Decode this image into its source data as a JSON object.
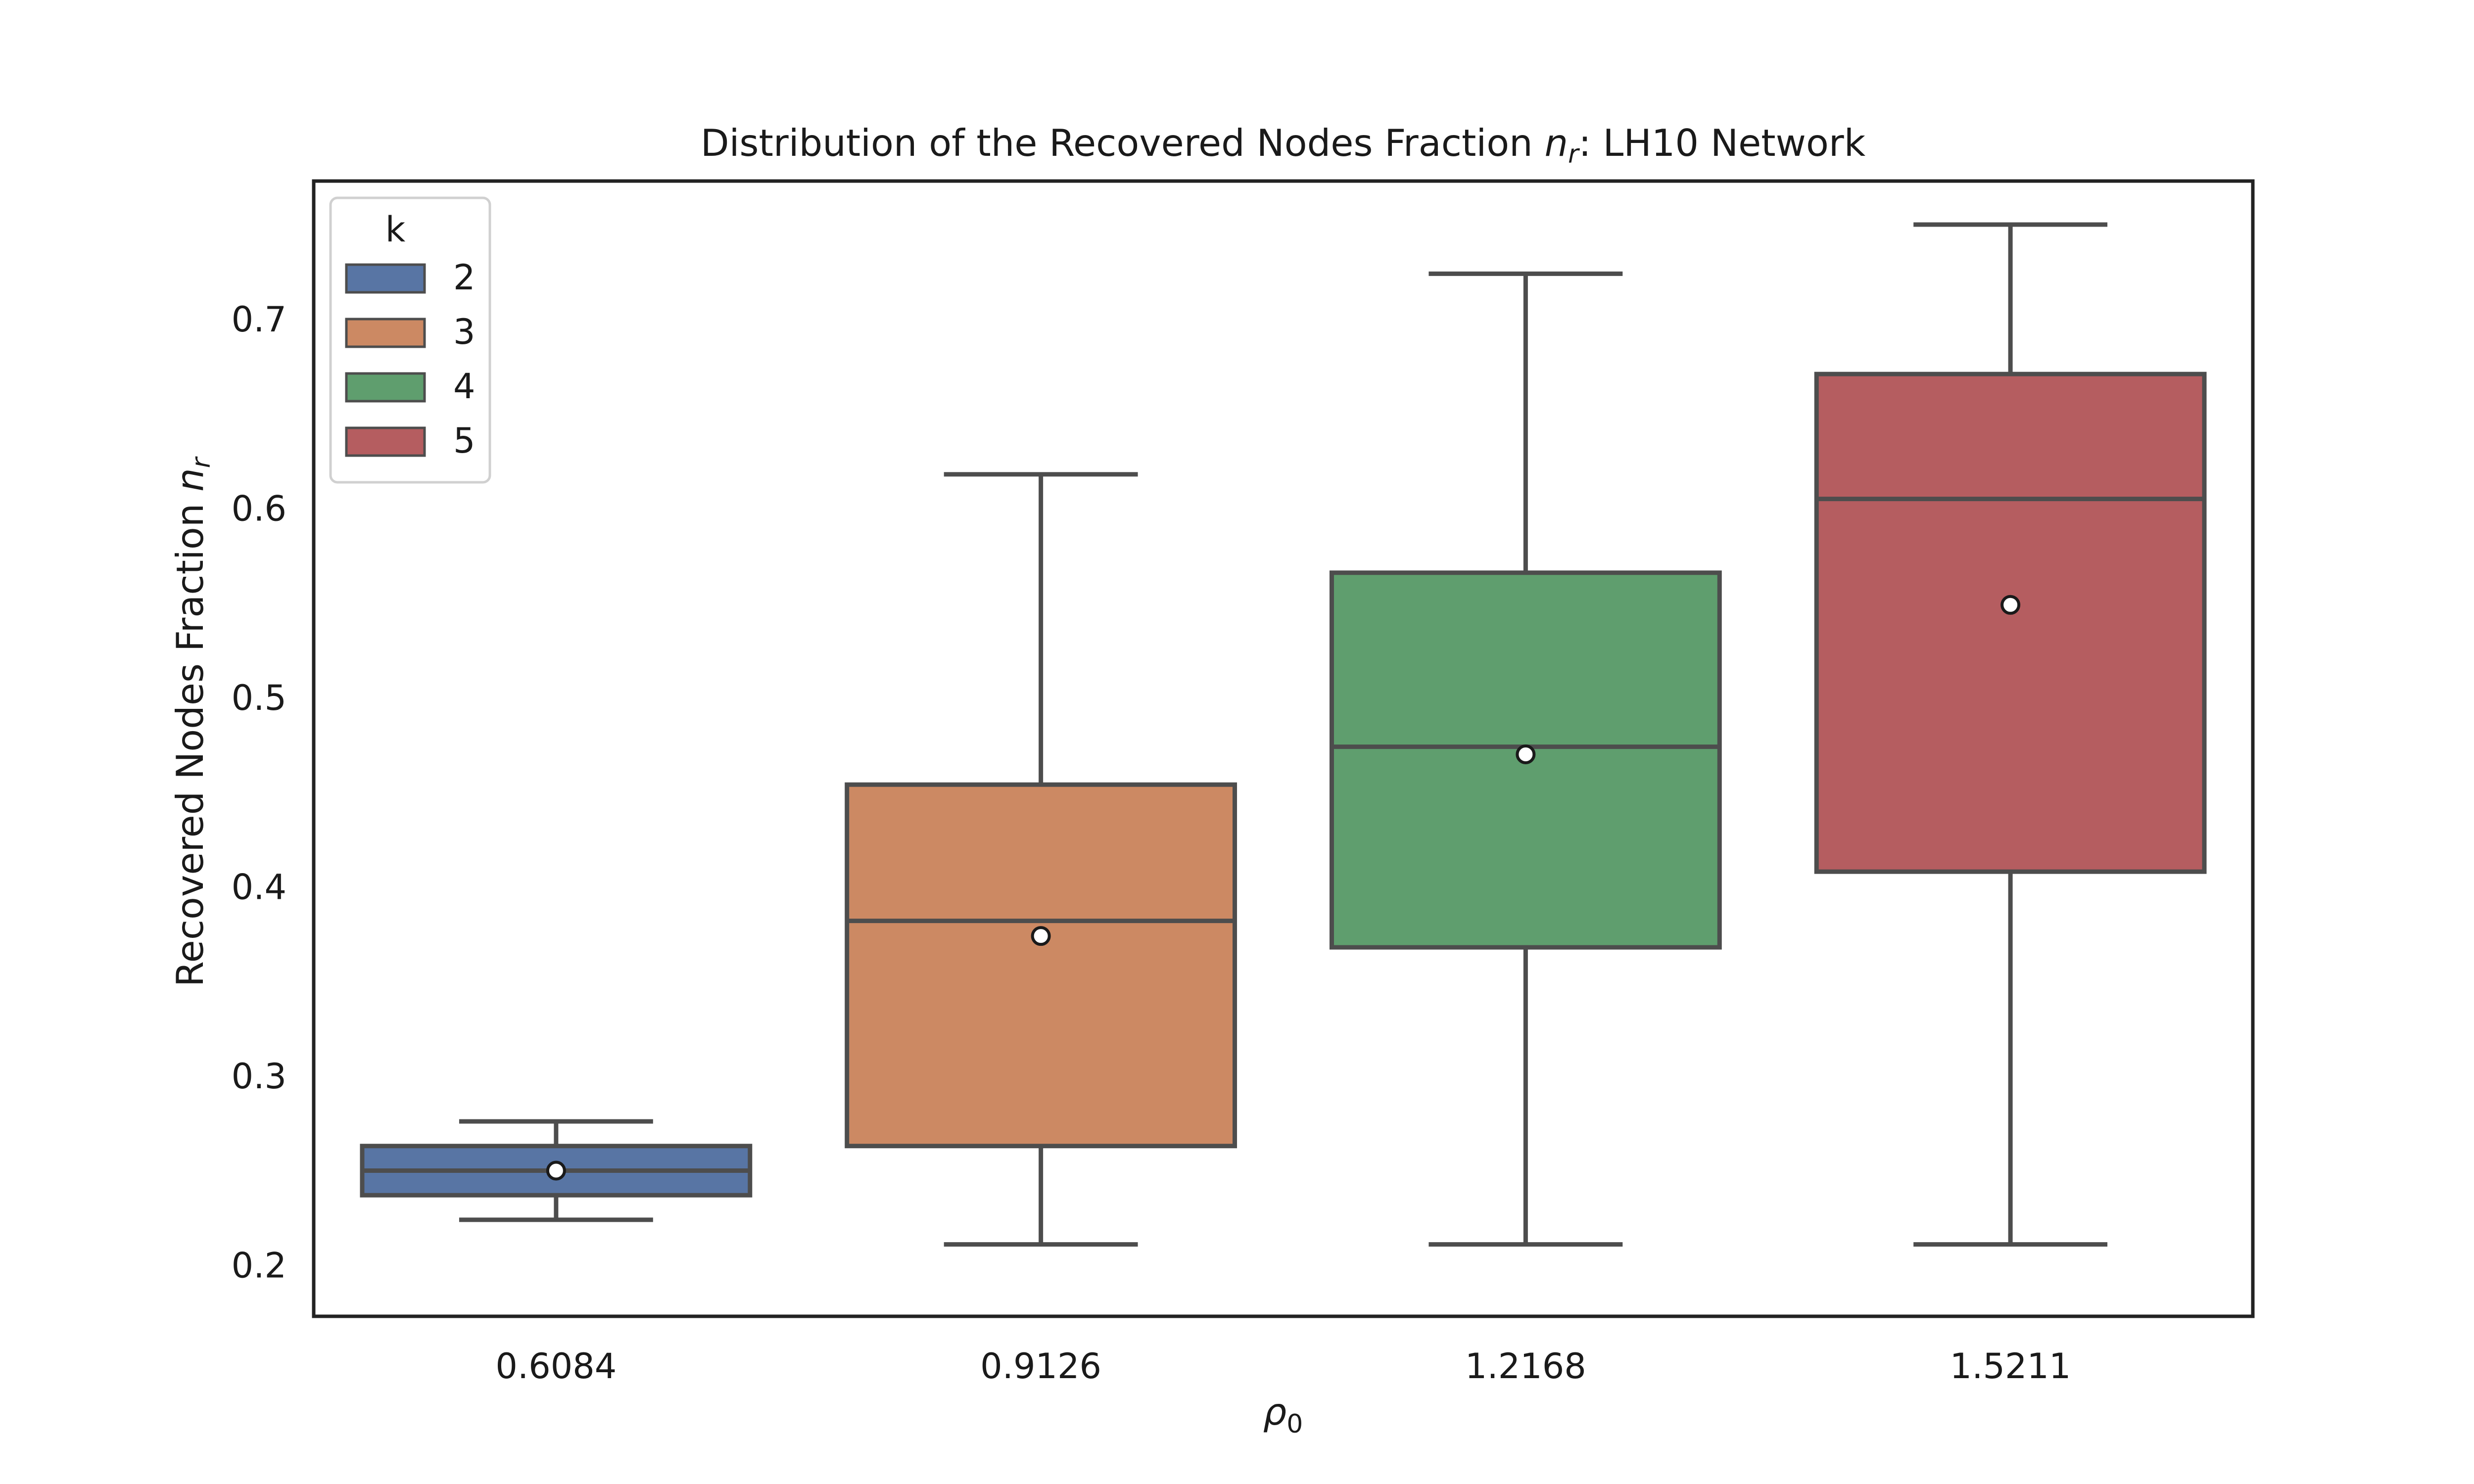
{
  "chart_data": {
    "type": "box",
    "title": {
      "prefix": "Distribution of the Recovered Nodes Fraction ",
      "var_main": "n",
      "var_sub": "r",
      "suffix": ": LH10 Network"
    },
    "xlabel": {
      "main": "ρ",
      "sub": "0"
    },
    "ylabel": {
      "prefix": "Recovered Nodes Fraction ",
      "var_main": "n",
      "var_sub": "r"
    },
    "categories": [
      "0.6084",
      "0.9126",
      "1.2168",
      "1.5211"
    ],
    "ylim": [
      0.173,
      0.773
    ],
    "yticks": [
      0.2,
      0.3,
      0.4,
      0.5,
      0.6,
      0.7
    ],
    "ytick_labels": [
      "0.2",
      "0.3",
      "0.4",
      "0.5",
      "0.6",
      "0.7"
    ],
    "legend": {
      "title": "k",
      "placement": "top-left",
      "entries": [
        {
          "label": "2",
          "color": "#5875a4"
        },
        {
          "label": "3",
          "color": "#cc8963"
        },
        {
          "label": "4",
          "color": "#5f9e6e"
        },
        {
          "label": "5",
          "color": "#b55d60"
        }
      ]
    },
    "series": [
      {
        "name": "2",
        "color": "#5875a4",
        "whisker_low": 0.224,
        "q1": 0.237,
        "median": 0.25,
        "q3": 0.263,
        "whisker_high": 0.276,
        "mean": 0.25
      },
      {
        "name": "3",
        "color": "#cc8963",
        "whisker_low": 0.211,
        "q1": 0.263,
        "median": 0.382,
        "q3": 0.454,
        "whisker_high": 0.618,
        "mean": 0.374
      },
      {
        "name": "4",
        "color": "#5f9e6e",
        "whisker_low": 0.211,
        "q1": 0.368,
        "median": 0.474,
        "q3": 0.566,
        "whisker_high": 0.724,
        "mean": 0.47
      },
      {
        "name": "5",
        "color": "#b55d60",
        "whisker_low": 0.211,
        "q1": 0.408,
        "median": 0.605,
        "q3": 0.671,
        "whisker_high": 0.75,
        "mean": 0.549
      }
    ],
    "grid": false
  }
}
